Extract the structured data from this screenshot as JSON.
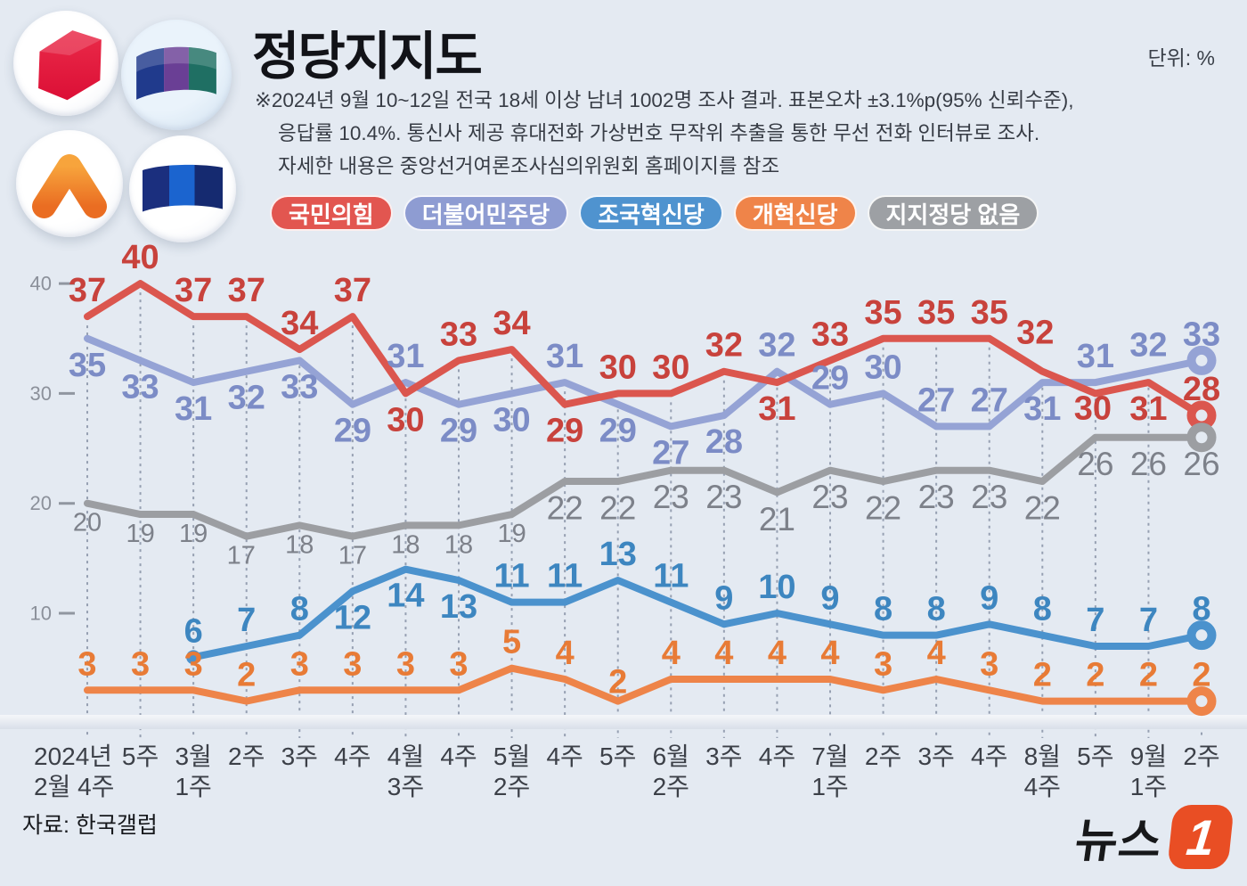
{
  "title": "정당지지도",
  "unit_label": "단위: %",
  "note_lines": [
    "※2024년  9월 10~12일 전국 18세 이상 남녀 1002명 조사 결과. 표본오차 ±3.1%p(95% 신뢰수준),",
    "응답률 10.4%. 통신사 제공 휴대전화 가상번호 무작위 추출을 통한 무선 전화 인터뷰로 조사.",
    "자세한 내용은 중앙선거여론조사심의위원회 홈페이지를 참조"
  ],
  "source_label": "자료: 한국갤럽",
  "news_logo": {
    "text": "뉴스",
    "one": "1",
    "color": "#e94e24"
  },
  "party_logos": [
    {
      "key": "ppp-cube-logo"
    },
    {
      "key": "rebuilding-korea-flag-logo"
    },
    {
      "key": "reform-party-arrow-logo"
    },
    {
      "key": "democratic-party-flag-logo"
    }
  ],
  "legend": [
    {
      "label": "국민의힘",
      "color": "#e25650"
    },
    {
      "label": "더불어민주당",
      "color": "#8e9cd2"
    },
    {
      "label": "조국혁신당",
      "color": "#4f93cf"
    },
    {
      "label": "개혁신당",
      "color": "#ef8449"
    },
    {
      "label": "지지정당 없음",
      "color": "#9da0a4"
    }
  ],
  "chart_data": {
    "type": "line",
    "unit": "%",
    "y_ticks": [
      10,
      20,
      30,
      40
    ],
    "ylim": [
      0,
      43
    ],
    "x_labels": [
      [
        "2024년",
        "2월 4주"
      ],
      [
        "5주"
      ],
      [
        "3월",
        "1주"
      ],
      [
        "2주"
      ],
      [
        "3주"
      ],
      [
        "4주"
      ],
      [
        "4월",
        "3주"
      ],
      [
        "4주"
      ],
      [
        "5월",
        "2주"
      ],
      [
        "4주"
      ],
      [
        "5주"
      ],
      [
        "6월",
        "2주"
      ],
      [
        "3주"
      ],
      [
        "4주"
      ],
      [
        "7월",
        "1주"
      ],
      [
        "2주"
      ],
      [
        "3주"
      ],
      [
        "4주"
      ],
      [
        "8월",
        "4주"
      ],
      [
        "5주"
      ],
      [
        "9월",
        "1주"
      ],
      [
        "2주"
      ]
    ],
    "series": [
      {
        "key": "ppp",
        "name": "국민의힘",
        "color": "#db564e",
        "label_color": "#c8423c",
        "values": [
          37,
          40,
          37,
          37,
          34,
          37,
          30,
          33,
          34,
          29,
          30,
          30,
          32,
          31,
          33,
          35,
          35,
          35,
          32,
          30,
          31,
          28
        ],
        "label_side": [
          "a",
          "a",
          "a",
          "a",
          "a",
          "a",
          "b",
          "a",
          "a",
          "b",
          "a",
          "a",
          "a",
          "b",
          "a",
          "a",
          "a",
          "a",
          "a",
          "b",
          "b",
          "a"
        ]
      },
      {
        "key": "dp",
        "name": "더불어민주당",
        "color": "#95a3d5",
        "label_color": "#7c8cc6",
        "values": [
          35,
          33,
          31,
          32,
          33,
          29,
          31,
          29,
          30,
          31,
          29,
          27,
          28,
          32,
          29,
          30,
          27,
          27,
          31,
          31,
          32,
          33
        ],
        "label_side": [
          "b",
          "b",
          "b",
          "b",
          "b",
          "b",
          "a",
          "b",
          "b",
          "a",
          "b",
          "b",
          "b",
          "a",
          "a",
          "a",
          "a",
          "a",
          "b",
          "a",
          "a",
          "a"
        ]
      },
      {
        "key": "rkp",
        "name": "조국혁신당",
        "color": "#4b92cd",
        "label_color": "#3d86c0",
        "values": [
          null,
          null,
          6,
          7,
          8,
          12,
          14,
          13,
          11,
          11,
          13,
          11,
          9,
          10,
          9,
          8,
          8,
          9,
          8,
          7,
          7,
          8
        ],
        "label_side": [
          "a",
          "a",
          "a",
          "a",
          "a",
          "b",
          "b",
          "b",
          "a",
          "a",
          "a",
          "a",
          "a",
          "a",
          "a",
          "a",
          "a",
          "a",
          "a",
          "a",
          "a",
          "a"
        ]
      },
      {
        "key": "reform",
        "name": "개혁신당",
        "color": "#ee8449",
        "label_color": "#e87b36",
        "values": [
          3,
          3,
          3,
          2,
          3,
          3,
          3,
          3,
          5,
          4,
          2,
          4,
          4,
          4,
          4,
          3,
          4,
          3,
          2,
          2,
          2,
          2
        ],
        "label_side": [
          "a",
          "a",
          "a",
          "a",
          "a",
          "a",
          "a",
          "a",
          "a",
          "a",
          "a",
          "a",
          "a",
          "a",
          "a",
          "a",
          "a",
          "a",
          "a",
          "a",
          "a",
          "a"
        ]
      },
      {
        "key": "none",
        "name": "지지정당 없음",
        "color": "#9c9ea2",
        "label_color": "#7d818a",
        "values": [
          20,
          19,
          19,
          17,
          18,
          17,
          18,
          18,
          19,
          22,
          22,
          23,
          23,
          21,
          23,
          22,
          23,
          23,
          22,
          26,
          26,
          26
        ],
        "label_side": [
          "b",
          "b",
          "b",
          "b",
          "b",
          "b",
          "b",
          "b",
          "b",
          "b",
          "b",
          "b",
          "b",
          "b",
          "b",
          "b",
          "b",
          "b",
          "b",
          "b",
          "b",
          "b"
        ]
      }
    ]
  }
}
